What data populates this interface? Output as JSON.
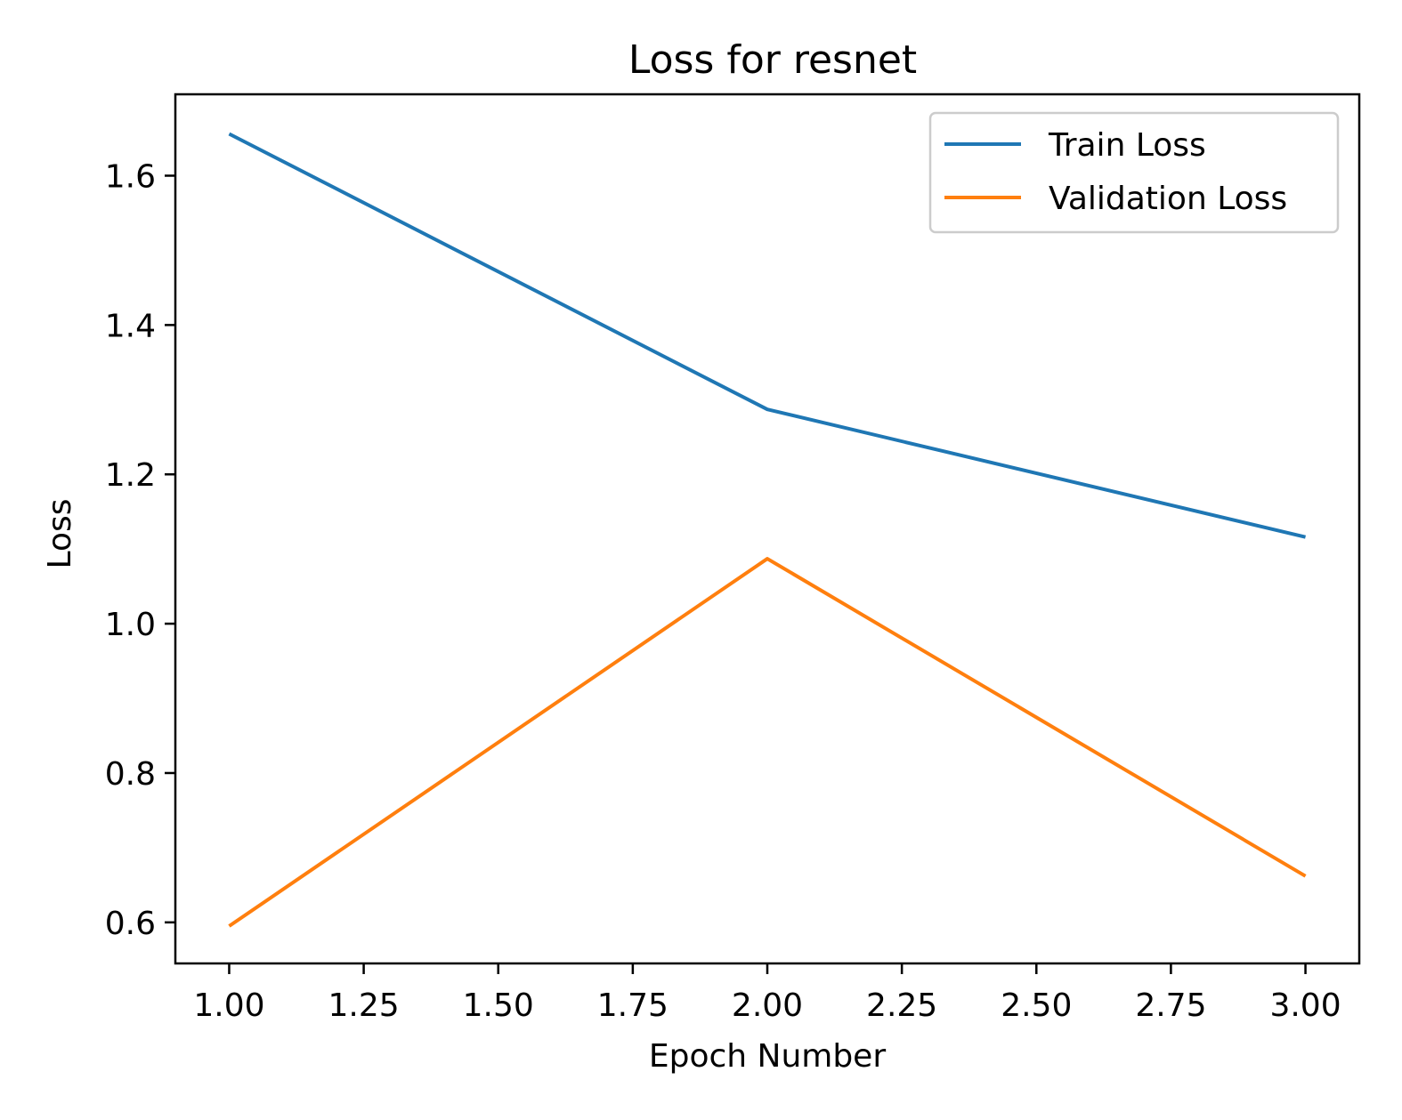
{
  "chart_data": {
    "type": "line",
    "title": "Loss for resnet",
    "xlabel": "Epoch Number",
    "ylabel": "Loss",
    "xlim": [
      0.9,
      3.1
    ],
    "ylim": [
      0.545,
      1.709
    ],
    "xticks": [
      1.0,
      1.25,
      1.5,
      1.75,
      2.0,
      2.25,
      2.5,
      2.75,
      3.0
    ],
    "xtick_labels": [
      "1.00",
      "1.25",
      "1.50",
      "1.75",
      "2.00",
      "2.25",
      "2.50",
      "2.75",
      "3.00"
    ],
    "yticks": [
      0.6,
      0.8,
      1.0,
      1.2,
      1.4,
      1.6
    ],
    "ytick_labels": [
      "0.6",
      "0.8",
      "1.0",
      "1.2",
      "1.4",
      "1.6"
    ],
    "grid": false,
    "legend_position": "top-right",
    "x": [
      1,
      2,
      3
    ],
    "series": [
      {
        "name": "Train Loss",
        "color": "#1f77b4",
        "values": [
          1.656,
          1.287,
          1.116
        ]
      },
      {
        "name": "Validation Loss",
        "color": "#ff7f0e",
        "values": [
          0.595,
          1.087,
          0.662
        ]
      }
    ]
  }
}
